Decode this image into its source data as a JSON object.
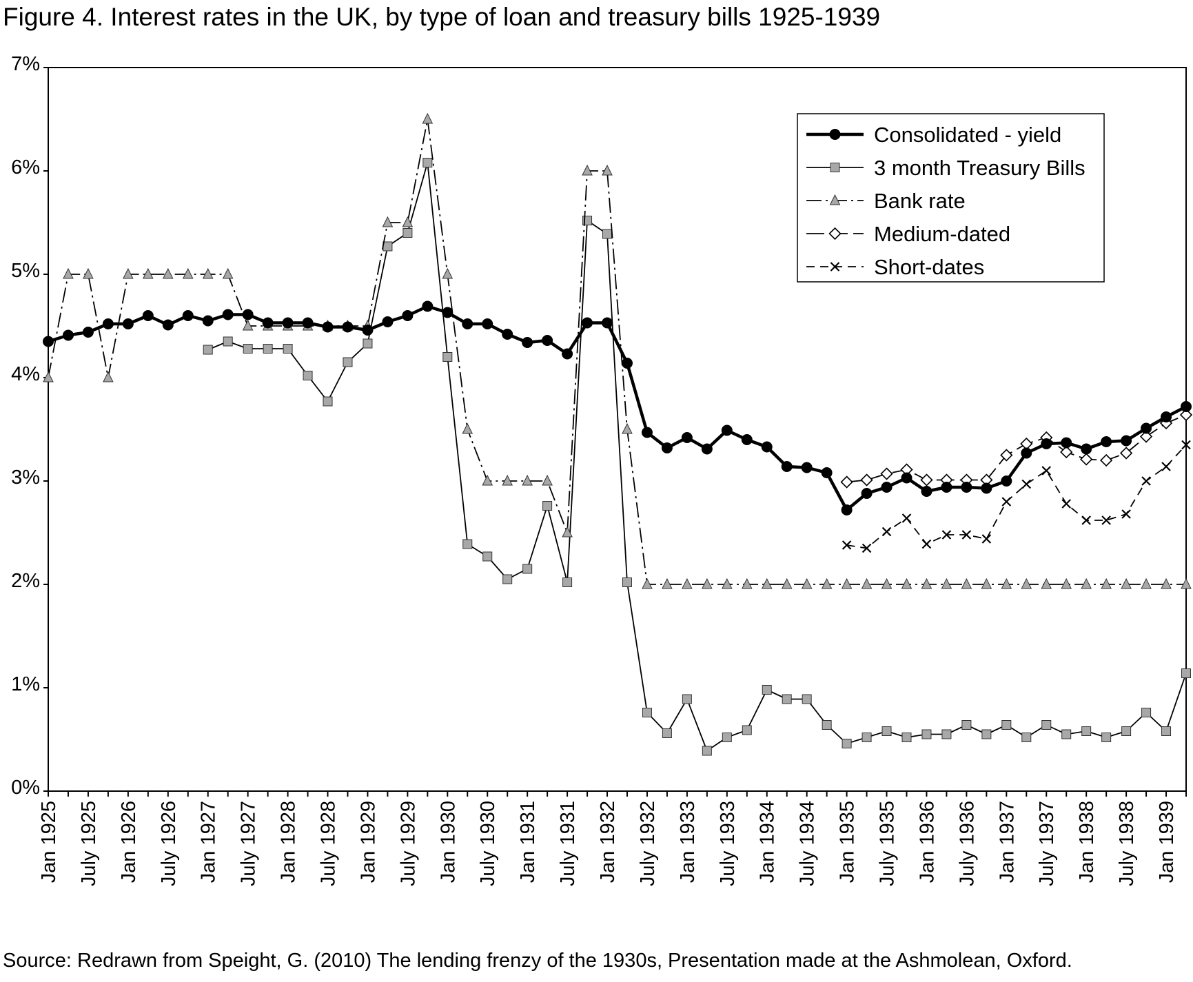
{
  "figure": {
    "title": "Figure 4.  Interest rates in the UK, by type of loan and treasury bills 1925-1939",
    "source": "Source: Redrawn from Speight, G. (2010) The lending frenzy of the 1930s, Presentation made at the Ashmolean, Oxford."
  },
  "chart_data": {
    "type": "line",
    "title": "Figure 4.  Interest rates in the UK, by type of loan and treasury bills 1925-1939",
    "xlabel": "",
    "ylabel": "",
    "ylim": [
      0,
      7
    ],
    "y_ticks": [
      "0%",
      "1%",
      "2%",
      "3%",
      "4%",
      "5%",
      "6%",
      "7%"
    ],
    "x_tick_labels": [
      "Jan 1925",
      "July 1925",
      "Jan 1926",
      "July 1926",
      "Jan 1927",
      "July 1927",
      "Jan 1928",
      "July 1928",
      "Jan 1929",
      "July 1929",
      "Jan 1930",
      "July 1930",
      "Jan 1931",
      "July 1931",
      "Jan 1932",
      "July 1932",
      "Jan 1933",
      "July 1933",
      "Jan 1934",
      "July 1934",
      "Jan 1935",
      "July 1935",
      "Jan 1936",
      "July 1936",
      "Jan 1937",
      "July 1937",
      "Jan 1938",
      "July 1938",
      "Jan 1939"
    ],
    "x_points": 58,
    "grid": false,
    "legend_position": "top-right",
    "series": [
      {
        "name": "Consolidated - yield",
        "color": "#000000",
        "marker": "circle",
        "dash": "solid",
        "values": [
          4.35,
          4.41,
          4.44,
          4.52,
          4.52,
          4.6,
          4.51,
          4.6,
          4.55,
          4.61,
          4.61,
          4.53,
          4.53,
          4.53,
          4.49,
          4.49,
          4.46,
          4.54,
          4.6,
          4.69,
          4.63,
          4.52,
          4.52,
          4.42,
          4.34,
          4.36,
          4.23,
          4.53,
          4.53,
          4.14,
          3.47,
          3.32,
          3.42,
          3.31,
          3.49,
          3.4,
          3.33,
          3.14,
          3.13,
          3.08,
          2.72,
          2.88,
          2.94,
          3.03,
          2.9,
          2.94,
          2.94,
          2.93,
          3.0,
          3.27,
          3.36,
          3.37,
          3.31,
          3.38,
          3.39,
          3.51,
          3.62,
          3.72
        ]
      },
      {
        "name": "3 month Treasury Bills",
        "color": "#a8a8a8",
        "marker": "square",
        "dash": "solid",
        "values": [
          null,
          null,
          null,
          null,
          null,
          null,
          null,
          null,
          4.27,
          4.35,
          4.28,
          4.28,
          4.28,
          4.02,
          3.77,
          4.15,
          4.33,
          5.27,
          5.4,
          6.08,
          4.2,
          2.39,
          2.27,
          2.05,
          2.15,
          2.76,
          2.02,
          5.52,
          5.39,
          2.02,
          0.76,
          0.56,
          0.89,
          0.39,
          0.52,
          0.59,
          0.98,
          0.89,
          0.89,
          0.64,
          0.46,
          0.52,
          0.58,
          0.52,
          0.55,
          0.55,
          0.64,
          0.55,
          0.64,
          0.52,
          0.64,
          0.55,
          0.58,
          0.52,
          0.58,
          0.76,
          0.58,
          1.14
        ]
      },
      {
        "name": "Bank rate",
        "color": "#a8a8a8",
        "marker": "triangle",
        "dash": "dash-dot",
        "values": [
          4.0,
          5.0,
          5.0,
          4.0,
          5.0,
          5.0,
          5.0,
          5.0,
          5.0,
          5.0,
          4.5,
          4.5,
          4.5,
          4.5,
          4.5,
          4.5,
          4.5,
          5.5,
          5.5,
          6.5,
          5.0,
          3.5,
          3.0,
          3.0,
          3.0,
          3.0,
          2.5,
          6.0,
          6.0,
          3.5,
          2.0,
          2.0,
          2.0,
          2.0,
          2.0,
          2.0,
          2.0,
          2.0,
          2.0,
          2.0,
          2.0,
          2.0,
          2.0,
          2.0,
          2.0,
          2.0,
          2.0,
          2.0,
          2.0,
          2.0,
          2.0,
          2.0,
          2.0,
          2.0,
          2.0,
          2.0,
          2.0,
          2.0
        ]
      },
      {
        "name": "Medium-dated",
        "color": "#ffffff",
        "marker": "diamond",
        "dash": "long-dash",
        "values": [
          null,
          null,
          null,
          null,
          null,
          null,
          null,
          null,
          null,
          null,
          null,
          null,
          null,
          null,
          null,
          null,
          null,
          null,
          null,
          null,
          null,
          null,
          null,
          null,
          null,
          null,
          null,
          null,
          null,
          null,
          null,
          null,
          null,
          null,
          null,
          null,
          null,
          null,
          null,
          null,
          2.99,
          3.01,
          3.07,
          3.11,
          3.01,
          3.01,
          3.01,
          3.01,
          3.25,
          3.36,
          3.42,
          3.28,
          3.21,
          3.2,
          3.27,
          3.43,
          3.56,
          3.64
        ]
      },
      {
        "name": "Short-dates",
        "color": "#000000",
        "marker": "x",
        "dash": "short-dash",
        "values": [
          null,
          null,
          null,
          null,
          null,
          null,
          null,
          null,
          null,
          null,
          null,
          null,
          null,
          null,
          null,
          null,
          null,
          null,
          null,
          null,
          null,
          null,
          null,
          null,
          null,
          null,
          null,
          null,
          null,
          null,
          null,
          null,
          null,
          null,
          null,
          null,
          null,
          null,
          null,
          null,
          2.38,
          2.35,
          2.51,
          2.64,
          2.39,
          2.48,
          2.48,
          2.44,
          2.8,
          2.97,
          3.1,
          2.78,
          2.62,
          2.62,
          2.68,
          3.0,
          3.14,
          3.35
        ]
      }
    ]
  }
}
